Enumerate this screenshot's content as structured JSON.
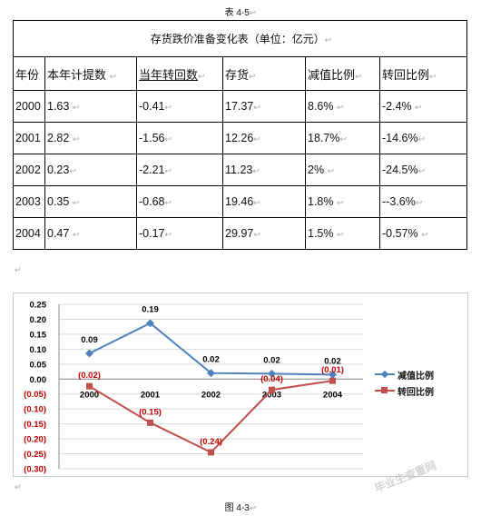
{
  "table_caption": "表 4-5",
  "paragraph_mark": "↵",
  "edit_mark": "↩",
  "table": {
    "title": "存货跌价准备变化表（单位：亿元）",
    "headers": [
      "年份",
      "本年计提数",
      "当年转回数",
      "存货",
      "减值比例",
      "转回比例"
    ],
    "rows": [
      [
        "2000",
        "1.63",
        "-0.41",
        "17.37",
        "8.6%",
        "-2.4%"
      ],
      [
        "2001",
        "2.82",
        "-1.56",
        "12.26",
        "18.7%",
        "-14.6%"
      ],
      [
        "2002",
        "0.23",
        "-2.21",
        "11.23",
        "2%",
        "-24.5%"
      ],
      [
        "2003",
        "0.35",
        "-0.68",
        "19.46",
        "1.8%",
        "--3.6%"
      ],
      [
        "2004",
        "0.47",
        "-0.17",
        "29.97",
        "1.5%",
        "-0.57%"
      ]
    ]
  },
  "chart_data": {
    "type": "line",
    "categories": [
      "2000",
      "2001",
      "2002",
      "2003",
      "2004"
    ],
    "series": [
      {
        "name": "减值比例",
        "values": [
          0.086,
          0.187,
          0.02,
          0.018,
          0.015
        ],
        "labels": [
          "0.09",
          "0.19",
          "0.02",
          "0.02",
          "0.02"
        ],
        "color": "#4f81bd",
        "marker": "diamond"
      },
      {
        "name": "转回比例",
        "values": [
          -0.024,
          -0.146,
          -0.245,
          -0.036,
          -0.0057
        ],
        "labels": [
          "(0.02)",
          "(0.15)",
          "(0.24)",
          "(0.04)",
          "(0.01)"
        ],
        "color": "#c0504d",
        "marker": "square"
      }
    ],
    "ylim": [
      -0.3,
      0.25
    ],
    "yticks": [
      0.25,
      0.2,
      0.15,
      0.1,
      0.05,
      0.0,
      -0.05,
      -0.1,
      -0.15,
      -0.2,
      -0.25,
      -0.3
    ],
    "ytick_labels": [
      "0.25",
      "0.20",
      "0.15",
      "0.10",
      "0.05",
      "0.00",
      "(0.05)",
      "(0.10)",
      "(0.15)",
      "(0.20)",
      "(0.25)",
      "(0.30)"
    ],
    "negative_tick_color": "#c00000",
    "grid": true,
    "legend_position": "right"
  },
  "watermark": "毕业生查重网",
  "figure_caption": "图 4-3"
}
